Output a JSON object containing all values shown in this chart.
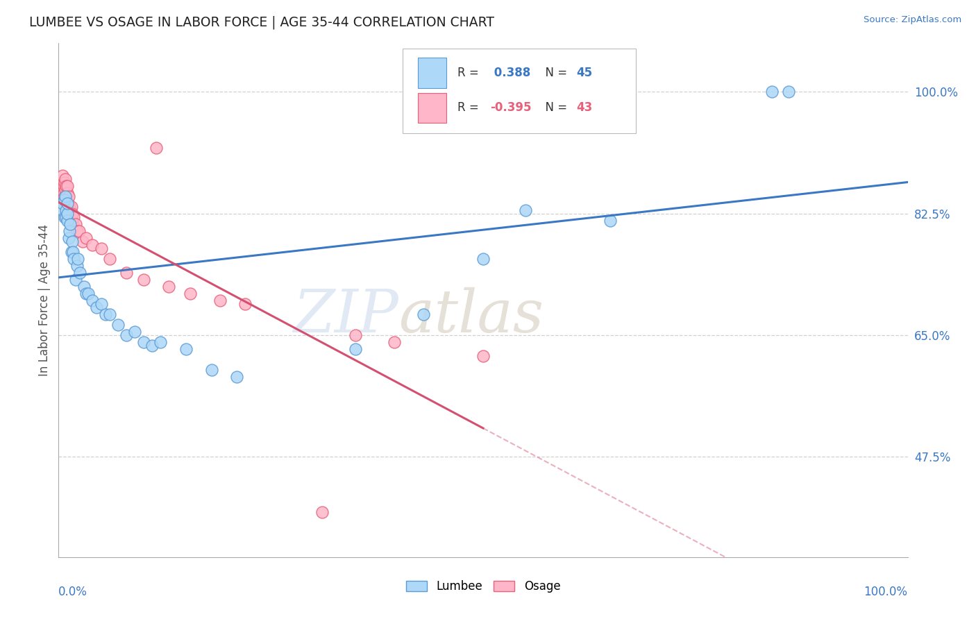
{
  "title": "LUMBEE VS OSAGE IN LABOR FORCE | AGE 35-44 CORRELATION CHART",
  "source_text": "Source: ZipAtlas.com",
  "watermark_zip": "ZIP",
  "watermark_atlas": "atlas",
  "legend_blue_label": "Lumbee",
  "legend_pink_label": "Osage",
  "R_blue": 0.388,
  "N_blue": 45,
  "R_pink": -0.395,
  "N_pink": 43,
  "blue_color": "#ADD8F7",
  "blue_edge_color": "#5B9BD5",
  "pink_color": "#FFB6C8",
  "pink_edge_color": "#E8607A",
  "blue_line_color": "#3B78C4",
  "pink_line_color": "#D45070",
  "grid_color": "#CCCCCC",
  "background_color": "#FFFFFF",
  "ylabel_ticks": [
    0.475,
    0.65,
    0.825,
    1.0
  ],
  "ylabel_labels": [
    "47.5%",
    "65.0%",
    "82.5%",
    "100.0%"
  ],
  "lumbee_x": [
    0.005,
    0.005,
    0.007,
    0.007,
    0.008,
    0.009,
    0.009,
    0.01,
    0.01,
    0.01,
    0.012,
    0.013,
    0.014,
    0.015,
    0.016,
    0.017,
    0.018,
    0.02,
    0.022,
    0.023,
    0.025,
    0.03,
    0.032,
    0.035,
    0.04,
    0.045,
    0.05,
    0.055,
    0.06,
    0.07,
    0.08,
    0.09,
    0.1,
    0.11,
    0.12,
    0.15,
    0.18,
    0.21,
    0.35,
    0.43,
    0.5,
    0.55,
    0.65,
    0.84,
    0.86
  ],
  "lumbee_y": [
    0.83,
    0.84,
    0.82,
    0.845,
    0.85,
    0.82,
    0.83,
    0.815,
    0.825,
    0.84,
    0.79,
    0.8,
    0.81,
    0.77,
    0.785,
    0.77,
    0.76,
    0.73,
    0.75,
    0.76,
    0.74,
    0.72,
    0.71,
    0.71,
    0.7,
    0.69,
    0.695,
    0.68,
    0.68,
    0.665,
    0.65,
    0.655,
    0.64,
    0.635,
    0.64,
    0.63,
    0.6,
    0.59,
    0.63,
    0.68,
    0.76,
    0.83,
    0.815,
    1.0,
    1.0
  ],
  "osage_x": [
    0.004,
    0.005,
    0.005,
    0.006,
    0.006,
    0.007,
    0.007,
    0.008,
    0.008,
    0.009,
    0.009,
    0.01,
    0.01,
    0.01,
    0.011,
    0.012,
    0.012,
    0.013,
    0.014,
    0.015,
    0.015,
    0.016,
    0.017,
    0.018,
    0.02,
    0.022,
    0.024,
    0.028,
    0.032,
    0.04,
    0.05,
    0.06,
    0.08,
    0.1,
    0.13,
    0.155,
    0.19,
    0.22,
    0.35,
    0.395,
    0.5,
    0.115,
    0.31
  ],
  "osage_y": [
    0.855,
    0.87,
    0.88,
    0.855,
    0.865,
    0.85,
    0.87,
    0.86,
    0.875,
    0.85,
    0.865,
    0.855,
    0.84,
    0.865,
    0.84,
    0.83,
    0.85,
    0.835,
    0.83,
    0.835,
    0.82,
    0.825,
    0.81,
    0.82,
    0.81,
    0.8,
    0.8,
    0.785,
    0.79,
    0.78,
    0.775,
    0.76,
    0.74,
    0.73,
    0.72,
    0.71,
    0.7,
    0.695,
    0.65,
    0.64,
    0.62,
    0.92,
    0.395
  ]
}
